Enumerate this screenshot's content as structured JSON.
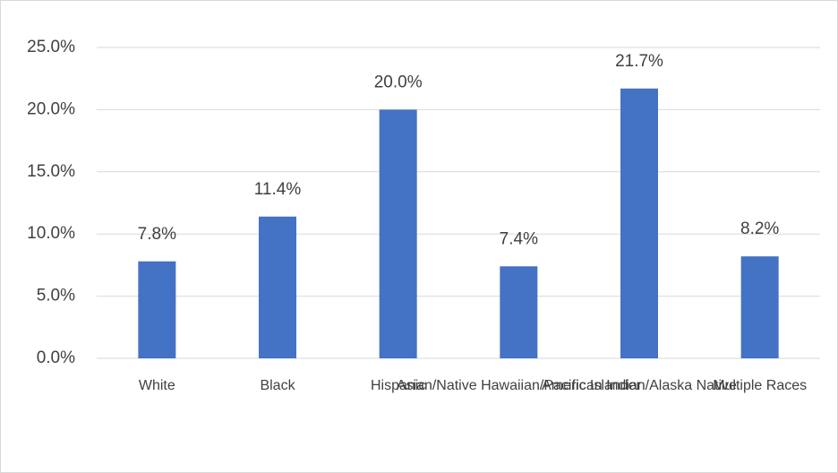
{
  "chart_data": {
    "type": "bar",
    "categories": [
      "White",
      "Black",
      "Hispanic",
      "Asian/Native Hawaiian/Pacific Islander",
      "American Indian/Alaska Native",
      "Multiple Races"
    ],
    "values": [
      7.8,
      11.4,
      20.0,
      7.4,
      21.7,
      8.2
    ],
    "value_labels": [
      "7.8%",
      "11.4%",
      "20.0%",
      "7.4%",
      "21.7%",
      "8.2%"
    ],
    "color": "#4472c4",
    "ylim": [
      0,
      25
    ],
    "yticks": [
      {
        "value": 0,
        "label": "0.0%"
      },
      {
        "value": 5,
        "label": "5.0%"
      },
      {
        "value": 10,
        "label": "10.0%"
      },
      {
        "value": 15,
        "label": "15.0%"
      },
      {
        "value": 20,
        "label": "20.0%"
      },
      {
        "value": 25,
        "label": "25.0%"
      }
    ],
    "grid": true
  }
}
